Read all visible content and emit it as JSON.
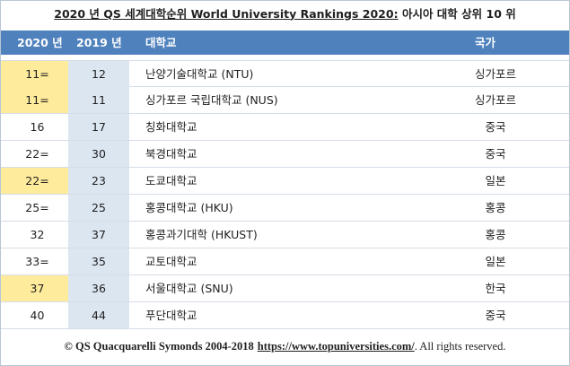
{
  "title": {
    "prefix": "2020 년 QS 세계대학순위 World University Rankings 2020:",
    "suffix": "아시아 대학 상위 10 위"
  },
  "header": {
    "col_2020": "2020 년",
    "col_2019": "2019 년",
    "col_univ": "대학교",
    "col_country": "국가"
  },
  "rows": [
    {
      "r2020": "11=",
      "r2019": "12",
      "name": "난양기술대학교 (NTU)",
      "country": "싱가포르",
      "highlight": true
    },
    {
      "r2020": "11=",
      "r2019": "11",
      "name": "싱가포르 국립대학교 (NUS)",
      "country": "싱가포르",
      "highlight": true
    },
    {
      "r2020": "16",
      "r2019": "17",
      "name": "칭화대학교",
      "country": "중국",
      "highlight": false
    },
    {
      "r2020": "22=",
      "r2019": "30",
      "name": "북경대학교",
      "country": "중국",
      "highlight": false
    },
    {
      "r2020": "22=",
      "r2019": "23",
      "name": "도쿄대학교",
      "country": "일본",
      "highlight": true
    },
    {
      "r2020": "25=",
      "r2019": "25",
      "name": "홍콩대학교 (HKU)",
      "country": "홍콩",
      "highlight": false
    },
    {
      "r2020": "32",
      "r2019": "37",
      "name": "홍콩과기대학 (HKUST)",
      "country": "홍콩",
      "highlight": false
    },
    {
      "r2020": "33=",
      "r2019": "35",
      "name": "교토대학교",
      "country": "일본",
      "highlight": false
    },
    {
      "r2020": "37",
      "r2019": "36",
      "name": "서울대학교 (SNU)",
      "country": "한국",
      "highlight": true
    },
    {
      "r2020": "40",
      "r2019": "44",
      "name": "푸단대학교",
      "country": "중국",
      "highlight": false
    }
  ],
  "footer": {
    "copyright": "© QS Quacquarelli Symonds 2004-2018",
    "link": "https://www.topuniversities.com/",
    "rights": ". All rights reserved."
  },
  "colors": {
    "header_bg": "#4f81bd",
    "col2019_bg": "#dce6f1",
    "highlight_bg": "#ffeb9c"
  }
}
